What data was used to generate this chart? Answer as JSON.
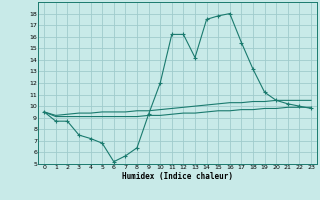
{
  "xlabel": "Humidex (Indice chaleur)",
  "background_color": "#c8eae8",
  "grid_color": "#a0cccc",
  "line_color": "#1a7a6e",
  "xlim": [
    -0.5,
    23.5
  ],
  "ylim": [
    5,
    19
  ],
  "yticks": [
    5,
    6,
    7,
    8,
    9,
    10,
    11,
    12,
    13,
    14,
    15,
    16,
    17,
    18
  ],
  "xticks": [
    0,
    1,
    2,
    3,
    4,
    5,
    6,
    7,
    8,
    9,
    10,
    11,
    12,
    13,
    14,
    15,
    16,
    17,
    18,
    19,
    20,
    21,
    22,
    23
  ],
  "series": [
    {
      "x": [
        0,
        1,
        2,
        3,
        4,
        5,
        6,
        7,
        8,
        9,
        10,
        11,
        12,
        13,
        14,
        15,
        16,
        17,
        18,
        19,
        20,
        21,
        22,
        23
      ],
      "y": [
        9.5,
        8.7,
        8.7,
        7.5,
        7.2,
        6.8,
        5.2,
        5.7,
        6.4,
        9.3,
        12.0,
        16.2,
        16.2,
        14.2,
        17.5,
        17.8,
        18.0,
        15.5,
        13.2,
        11.2,
        10.5,
        10.2,
        10.0,
        9.8
      ],
      "marker": "+"
    },
    {
      "x": [
        0,
        1,
        2,
        3,
        4,
        5,
        6,
        7,
        8,
        9,
        10,
        11,
        12,
        13,
        14,
        15,
        16,
        17,
        18,
        19,
        20,
        21,
        22,
        23
      ],
      "y": [
        9.5,
        9.2,
        9.3,
        9.4,
        9.4,
        9.5,
        9.5,
        9.5,
        9.6,
        9.6,
        9.7,
        9.8,
        9.9,
        10.0,
        10.1,
        10.2,
        10.3,
        10.3,
        10.4,
        10.4,
        10.5,
        10.5,
        10.5,
        10.5
      ],
      "marker": null
    },
    {
      "x": [
        0,
        1,
        2,
        3,
        4,
        5,
        6,
        7,
        8,
        9,
        10,
        11,
        12,
        13,
        14,
        15,
        16,
        17,
        18,
        19,
        20,
        21,
        22,
        23
      ],
      "y": [
        9.5,
        9.1,
        9.1,
        9.1,
        9.1,
        9.1,
        9.1,
        9.1,
        9.1,
        9.2,
        9.2,
        9.3,
        9.4,
        9.4,
        9.5,
        9.6,
        9.6,
        9.7,
        9.7,
        9.8,
        9.8,
        9.9,
        9.9,
        9.9
      ],
      "marker": null
    }
  ]
}
